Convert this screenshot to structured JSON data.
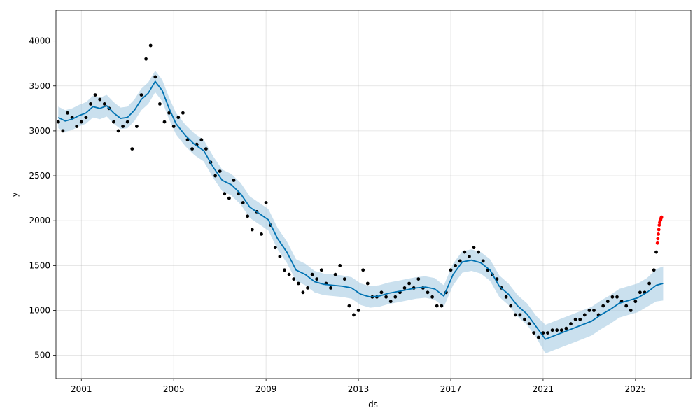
{
  "chart_data": {
    "type": "scatter",
    "title": "",
    "xlabel": "ds",
    "ylabel": "y",
    "x_ticks": [
      {
        "label": "2001",
        "value": 2001
      },
      {
        "label": "2005",
        "value": 2005
      },
      {
        "label": "2009",
        "value": 2009
      },
      {
        "label": "2013",
        "value": 2013
      },
      {
        "label": "2017",
        "value": 2017
      },
      {
        "label": "2021",
        "value": 2021
      },
      {
        "label": "2025",
        "value": 2025
      }
    ],
    "y_ticks": [
      {
        "label": "500",
        "value": 500
      },
      {
        "label": "1000",
        "value": 1000
      },
      {
        "label": "1500",
        "value": 1500
      },
      {
        "label": "2000",
        "value": 2000
      },
      {
        "label": "2500",
        "value": 2500
      },
      {
        "label": "3000",
        "value": 3000
      },
      {
        "label": "3500",
        "value": 3500
      },
      {
        "label": "4000",
        "value": 4000
      }
    ],
    "xlim": [
      1999.9,
      2027.4
    ],
    "ylim": [
      240,
      4340
    ],
    "grid": true,
    "colors": {
      "observed": "#000000",
      "recent": "#ff0000",
      "forecast_line": "#0072b2",
      "uncertainty_band": "#a6cbe3"
    },
    "series": [
      {
        "kind": "forecast",
        "x": [
          2000.0,
          2000.3,
          2000.6,
          2000.9,
          2001.2,
          2001.5,
          2001.8,
          2002.1,
          2002.4,
          2002.7,
          2003.0,
          2003.3,
          2003.6,
          2003.9,
          2004.2,
          2004.5,
          2004.8,
          2005.1,
          2005.5,
          2005.9,
          2006.3,
          2006.7,
          2007.1,
          2007.5,
          2007.9,
          2008.3,
          2008.7,
          2009.1,
          2009.5,
          2009.9,
          2010.3,
          2010.7,
          2011.1,
          2011.5,
          2011.9,
          2012.3,
          2012.7,
          2013.1,
          2013.5,
          2013.9,
          2014.3,
          2014.7,
          2015.1,
          2015.5,
          2015.9,
          2016.3,
          2016.7,
          2017.1,
          2017.5,
          2017.9,
          2018.3,
          2018.7,
          2019.1,
          2019.5,
          2019.9,
          2020.3,
          2020.7,
          2021.1,
          2021.5,
          2021.9,
          2022.3,
          2022.7,
          2023.1,
          2023.5,
          2023.9,
          2024.3,
          2024.7,
          2025.1,
          2025.5,
          2025.9,
          2026.2
        ],
        "yhat": [
          3150,
          3110,
          3130,
          3170,
          3200,
          3270,
          3250,
          3280,
          3200,
          3140,
          3150,
          3230,
          3350,
          3420,
          3550,
          3450,
          3250,
          3080,
          2950,
          2850,
          2780,
          2600,
          2450,
          2400,
          2300,
          2150,
          2080,
          2010,
          1800,
          1650,
          1450,
          1400,
          1320,
          1290,
          1280,
          1270,
          1250,
          1180,
          1150,
          1160,
          1190,
          1210,
          1230,
          1250,
          1260,
          1240,
          1160,
          1400,
          1540,
          1560,
          1530,
          1450,
          1270,
          1180,
          1050,
          960,
          820,
          680,
          720,
          760,
          800,
          840,
          880,
          950,
          1010,
          1080,
          1110,
          1140,
          1200,
          1280,
          1300
        ],
        "lower": [
          3030,
          2990,
          3010,
          3050,
          3080,
          3150,
          3130,
          3160,
          3080,
          3020,
          3030,
          3110,
          3230,
          3300,
          3430,
          3330,
          3130,
          2960,
          2830,
          2730,
          2660,
          2480,
          2330,
          2280,
          2180,
          2030,
          1960,
          1890,
          1680,
          1530,
          1330,
          1280,
          1200,
          1170,
          1160,
          1150,
          1130,
          1060,
          1030,
          1040,
          1070,
          1090,
          1110,
          1130,
          1140,
          1120,
          1040,
          1280,
          1420,
          1440,
          1410,
          1330,
          1150,
          1060,
          930,
          840,
          700,
          520,
          560,
          600,
          640,
          680,
          720,
          790,
          850,
          920,
          950,
          980,
          1040,
          1100,
          1110
        ],
        "upper": [
          3270,
          3230,
          3250,
          3290,
          3320,
          3390,
          3370,
          3400,
          3320,
          3260,
          3270,
          3350,
          3470,
          3540,
          3670,
          3570,
          3370,
          3200,
          3070,
          2970,
          2900,
          2720,
          2570,
          2520,
          2420,
          2270,
          2200,
          2130,
          1920,
          1770,
          1570,
          1520,
          1440,
          1410,
          1400,
          1390,
          1370,
          1300,
          1270,
          1280,
          1310,
          1330,
          1350,
          1370,
          1380,
          1360,
          1280,
          1520,
          1660,
          1680,
          1650,
          1570,
          1390,
          1300,
          1170,
          1080,
          940,
          840,
          880,
          920,
          960,
          1000,
          1040,
          1110,
          1170,
          1240,
          1270,
          1300,
          1360,
          1460,
          1490
        ]
      },
      {
        "kind": "observed",
        "x": [
          2000.0,
          2000.2,
          2000.4,
          2000.6,
          2000.8,
          2001.0,
          2001.2,
          2001.4,
          2001.6,
          2001.8,
          2002.0,
          2002.2,
          2002.4,
          2002.6,
          2002.8,
          2003.0,
          2003.2,
          2003.4,
          2003.6,
          2003.8,
          2004.0,
          2004.2,
          2004.4,
          2004.6,
          2004.8,
          2005.0,
          2005.2,
          2005.4,
          2005.6,
          2005.8,
          2006.0,
          2006.2,
          2006.4,
          2006.6,
          2006.8,
          2007.0,
          2007.2,
          2007.4,
          2007.6,
          2007.8,
          2008.0,
          2008.2,
          2008.4,
          2008.6,
          2008.8,
          2009.0,
          2009.2,
          2009.4,
          2009.6,
          2009.8,
          2010.0,
          2010.2,
          2010.4,
          2010.6,
          2010.8,
          2011.0,
          2011.2,
          2011.4,
          2011.6,
          2011.8,
          2012.0,
          2012.2,
          2012.4,
          2012.6,
          2012.8,
          2013.0,
          2013.2,
          2013.4,
          2013.6,
          2013.8,
          2014.0,
          2014.2,
          2014.4,
          2014.6,
          2014.8,
          2015.0,
          2015.2,
          2015.4,
          2015.6,
          2015.8,
          2016.0,
          2016.2,
          2016.4,
          2016.6,
          2016.8,
          2017.0,
          2017.2,
          2017.4,
          2017.6,
          2017.8,
          2018.0,
          2018.2,
          2018.4,
          2018.6,
          2018.8,
          2019.0,
          2019.2,
          2019.4,
          2019.6,
          2019.8,
          2020.0,
          2020.2,
          2020.4,
          2020.6,
          2020.8,
          2021.0,
          2021.2,
          2021.4,
          2021.6,
          2021.8,
          2022.0,
          2022.2,
          2022.4,
          2022.6,
          2022.8,
          2023.0,
          2023.2,
          2023.4,
          2023.6,
          2023.8,
          2024.0,
          2024.2,
          2024.4,
          2024.6,
          2024.8,
          2025.0,
          2025.2,
          2025.4,
          2025.6,
          2025.8,
          2025.9
        ],
        "y": [
          3100,
          3000,
          3200,
          3150,
          3050,
          3100,
          3150,
          3300,
          3400,
          3350,
          3300,
          3250,
          3100,
          3000,
          3050,
          3100,
          2800,
          3050,
          3400,
          3800,
          3950,
          3600,
          3300,
          3100,
          3200,
          3050,
          3150,
          3200,
          2900,
          2800,
          2850,
          2900,
          2800,
          2650,
          2500,
          2550,
          2300,
          2250,
          2450,
          2300,
          2200,
          2050,
          1900,
          2100,
          1850,
          2200,
          1950,
          1700,
          1600,
          1450,
          1400,
          1350,
          1300,
          1200,
          1250,
          1400,
          1350,
          1450,
          1300,
          1250,
          1400,
          1500,
          1350,
          1050,
          950,
          1000,
          1450,
          1300,
          1150,
          1150,
          1200,
          1150,
          1100,
          1150,
          1200,
          1250,
          1300,
          1250,
          1350,
          1250,
          1200,
          1150,
          1050,
          1050,
          1200,
          1450,
          1500,
          1550,
          1650,
          1600,
          1700,
          1650,
          1550,
          1450,
          1400,
          1350,
          1250,
          1150,
          1050,
          950,
          950,
          900,
          850,
          750,
          700,
          750,
          750,
          780,
          780,
          780,
          800,
          850,
          900,
          900,
          950,
          1000,
          1000,
          950,
          1050,
          1100,
          1150,
          1150,
          1100,
          1050,
          1000,
          1100,
          1200,
          1200,
          1300,
          1450,
          1650
        ]
      },
      {
        "kind": "recent",
        "x": [
          2025.95,
          2025.97,
          2025.99,
          2026.01,
          2026.03,
          2026.05,
          2026.07,
          2026.09,
          2026.11,
          2026.13
        ],
        "y": [
          1750,
          1800,
          1850,
          1900,
          1950,
          1980,
          2000,
          2010,
          2030,
          2040
        ]
      }
    ]
  }
}
